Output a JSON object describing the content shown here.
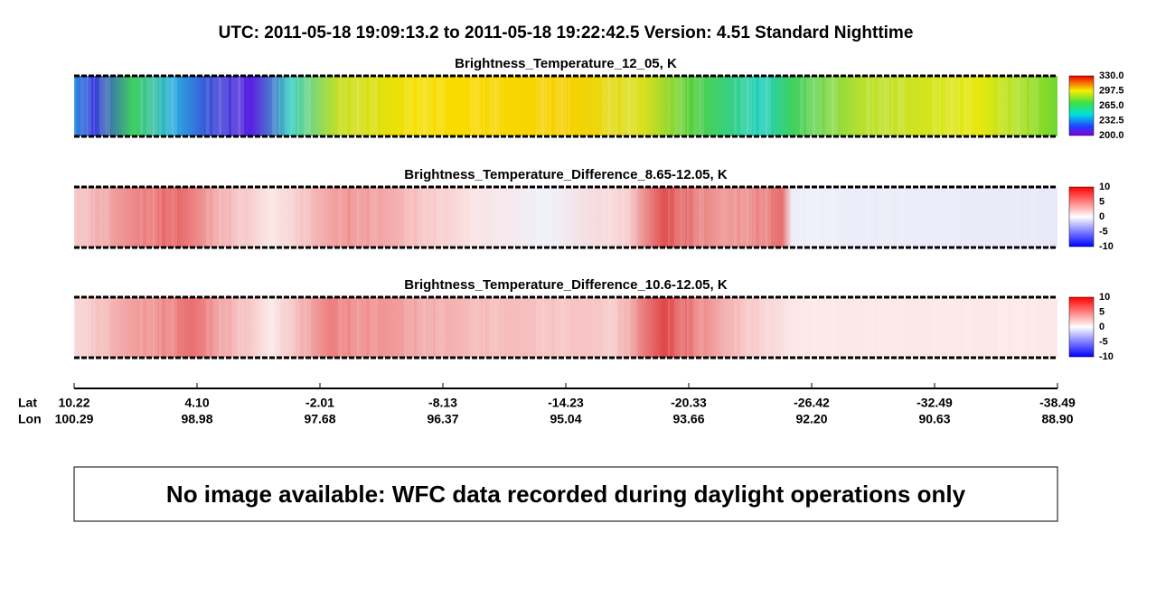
{
  "header": {
    "title": "UTC:  2011-05-18   19:09:13.2  to  2011-05-18   19:22:42.5    Version: 4.51  Standard Nighttime"
  },
  "panels": [
    {
      "title": "Brightness_Temperature_12_05, K",
      "colorbar_ticks": [
        "330.0",
        "297.5",
        "265.0",
        "232.5",
        "200.0"
      ]
    },
    {
      "title": "Brightness_Temperature_Difference_8.65-12.05, K",
      "colorbar_ticks": [
        "10",
        "5",
        "0",
        "-5",
        "-10"
      ]
    },
    {
      "title": "Brightness_Temperature_Difference_10.6-12.05, K",
      "colorbar_ticks": [
        "10",
        "5",
        "0",
        "-5",
        "-10"
      ]
    }
  ],
  "axis": {
    "lat_label": "Lat",
    "lon_label": "Lon",
    "lat": [
      "10.22",
      "4.10",
      "-2.01",
      "-8.13",
      "-14.23",
      "-20.33",
      "-26.42",
      "-32.49",
      "-38.49"
    ],
    "lon": [
      "100.29",
      "98.98",
      "97.68",
      "96.37",
      "95.04",
      "93.66",
      "92.20",
      "90.63",
      "88.90"
    ]
  },
  "notice": "No image available: WFC data recorded during daylight operations only"
}
